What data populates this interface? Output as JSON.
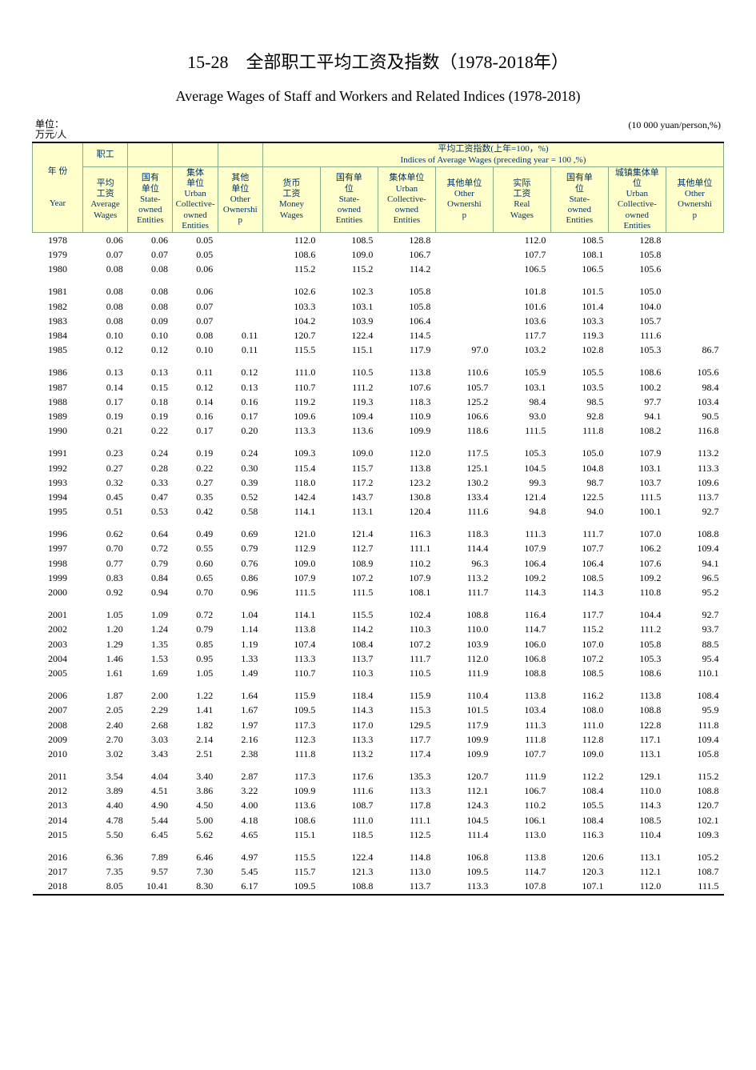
{
  "titles": {
    "cn": "15-28　全部职工平均工资及指数（1978-2018年）",
    "en": "Average Wages of Staff and Workers and Related Indices (1978-2018)"
  },
  "units": {
    "left": "单位：\n万元/人",
    "right": "(10 000 yuan/person,%)"
  },
  "header": {
    "year_cn": "年 份",
    "year_en": "Year",
    "staff_cn": "职工",
    "idx_group_cn": "平均工资指数(上年=100，%)",
    "idx_group_en": "Indices of Average Wages (preceding year = 100 ,%)",
    "avg_w_cn": "平均\n工资",
    "avg_w_en": "Average\nWages",
    "state_cn": "国有\n单位",
    "state_en": "State-\nowned\nEntities",
    "coll_cn": "集体\n单位",
    "coll_en": "Urban\nCollective-\nowned\nEntities",
    "other_cn": "其他\n单位",
    "other_en": "Other\nOwnershi\np",
    "money_cn": "货币\n工资",
    "money_en": "Money\nWages",
    "real_cn": "实际\n工资",
    "real_en": "Real\nWages",
    "state2_cn": "国有单\n位",
    "coll2_cn": "集体单位",
    "coll3_cn": "城镇集体单\n位",
    "other2_cn": "其他单位"
  },
  "groups": [
    [
      {
        "year": "1978",
        "c": [
          "0.06",
          "0.06",
          "0.05",
          "",
          "112.0",
          "108.5",
          "128.8",
          "",
          "112.0",
          "108.5",
          "128.8",
          ""
        ]
      },
      {
        "year": "1979",
        "c": [
          "0.07",
          "0.07",
          "0.05",
          "",
          "108.6",
          "109.0",
          "106.7",
          "",
          "107.7",
          "108.1",
          "105.8",
          ""
        ]
      },
      {
        "year": "1980",
        "c": [
          "0.08",
          "0.08",
          "0.06",
          "",
          "115.2",
          "115.2",
          "114.2",
          "",
          "106.5",
          "106.5",
          "105.6",
          ""
        ]
      }
    ],
    [
      {
        "year": "1981",
        "c": [
          "0.08",
          "0.08",
          "0.06",
          "",
          "102.6",
          "102.3",
          "105.8",
          "",
          "101.8",
          "101.5",
          "105.0",
          ""
        ]
      },
      {
        "year": "1982",
        "c": [
          "0.08",
          "0.08",
          "0.07",
          "",
          "103.3",
          "103.1",
          "105.8",
          "",
          "101.6",
          "101.4",
          "104.0",
          ""
        ]
      },
      {
        "year": "1983",
        "c": [
          "0.08",
          "0.09",
          "0.07",
          "",
          "104.2",
          "103.9",
          "106.4",
          "",
          "103.6",
          "103.3",
          "105.7",
          ""
        ]
      },
      {
        "year": "1984",
        "c": [
          "0.10",
          "0.10",
          "0.08",
          "0.11",
          "120.7",
          "122.4",
          "114.5",
          "",
          "117.7",
          "119.3",
          "111.6",
          ""
        ]
      },
      {
        "year": "1985",
        "c": [
          "0.12",
          "0.12",
          "0.10",
          "0.11",
          "115.5",
          "115.1",
          "117.9",
          "97.0",
          "103.2",
          "102.8",
          "105.3",
          "86.7"
        ]
      }
    ],
    [
      {
        "year": "1986",
        "c": [
          "0.13",
          "0.13",
          "0.11",
          "0.12",
          "111.0",
          "110.5",
          "113.8",
          "110.6",
          "105.9",
          "105.5",
          "108.6",
          "105.6"
        ]
      },
      {
        "year": "1987",
        "c": [
          "0.14",
          "0.15",
          "0.12",
          "0.13",
          "110.7",
          "111.2",
          "107.6",
          "105.7",
          "103.1",
          "103.5",
          "100.2",
          "98.4"
        ]
      },
      {
        "year": "1988",
        "c": [
          "0.17",
          "0.18",
          "0.14",
          "0.16",
          "119.2",
          "119.3",
          "118.3",
          "125.2",
          "98.4",
          "98.5",
          "97.7",
          "103.4"
        ]
      },
      {
        "year": "1989",
        "c": [
          "0.19",
          "0.19",
          "0.16",
          "0.17",
          "109.6",
          "109.4",
          "110.9",
          "106.6",
          "93.0",
          "92.8",
          "94.1",
          "90.5"
        ]
      },
      {
        "year": "1990",
        "c": [
          "0.21",
          "0.22",
          "0.17",
          "0.20",
          "113.3",
          "113.6",
          "109.9",
          "118.6",
          "111.5",
          "111.8",
          "108.2",
          "116.8"
        ]
      }
    ],
    [
      {
        "year": "1991",
        "c": [
          "0.23",
          "0.24",
          "0.19",
          "0.24",
          "109.3",
          "109.0",
          "112.0",
          "117.5",
          "105.3",
          "105.0",
          "107.9",
          "113.2"
        ]
      },
      {
        "year": "1992",
        "c": [
          "0.27",
          "0.28",
          "0.22",
          "0.30",
          "115.4",
          "115.7",
          "113.8",
          "125.1",
          "104.5",
          "104.8",
          "103.1",
          "113.3"
        ]
      },
      {
        "year": "1993",
        "c": [
          "0.32",
          "0.33",
          "0.27",
          "0.39",
          "118.0",
          "117.2",
          "123.2",
          "130.2",
          "99.3",
          "98.7",
          "103.7",
          "109.6"
        ]
      },
      {
        "year": "1994",
        "c": [
          "0.45",
          "0.47",
          "0.35",
          "0.52",
          "142.4",
          "143.7",
          "130.8",
          "133.4",
          "121.4",
          "122.5",
          "111.5",
          "113.7"
        ]
      },
      {
        "year": "1995",
        "c": [
          "0.51",
          "0.53",
          "0.42",
          "0.58",
          "114.1",
          "113.1",
          "120.4",
          "111.6",
          "94.8",
          "94.0",
          "100.1",
          "92.7"
        ]
      }
    ],
    [
      {
        "year": "1996",
        "c": [
          "0.62",
          "0.64",
          "0.49",
          "0.69",
          "121.0",
          "121.4",
          "116.3",
          "118.3",
          "111.3",
          "111.7",
          "107.0",
          "108.8"
        ]
      },
      {
        "year": "1997",
        "c": [
          "0.70",
          "0.72",
          "0.55",
          "0.79",
          "112.9",
          "112.7",
          "111.1",
          "114.4",
          "107.9",
          "107.7",
          "106.2",
          "109.4"
        ]
      },
      {
        "year": "1998",
        "c": [
          "0.77",
          "0.79",
          "0.60",
          "0.76",
          "109.0",
          "108.9",
          "110.2",
          "96.3",
          "106.4",
          "106.4",
          "107.6",
          "94.1"
        ]
      },
      {
        "year": "1999",
        "c": [
          "0.83",
          "0.84",
          "0.65",
          "0.86",
          "107.9",
          "107.2",
          "107.9",
          "113.2",
          "109.2",
          "108.5",
          "109.2",
          "96.5"
        ]
      },
      {
        "year": "2000",
        "c": [
          "0.92",
          "0.94",
          "0.70",
          "0.96",
          "111.5",
          "111.5",
          "108.1",
          "111.7",
          "114.3",
          "114.3",
          "110.8",
          "95.2"
        ]
      }
    ],
    [
      {
        "year": "2001",
        "c": [
          "1.05",
          "1.09",
          "0.72",
          "1.04",
          "114.1",
          "115.5",
          "102.4",
          "108.8",
          "116.4",
          "117.7",
          "104.4",
          "92.7"
        ]
      },
      {
        "year": "2002",
        "c": [
          "1.20",
          "1.24",
          "0.79",
          "1.14",
          "113.8",
          "114.2",
          "110.3",
          "110.0",
          "114.7",
          "115.2",
          "111.2",
          "93.7"
        ]
      },
      {
        "year": "2003",
        "c": [
          "1.29",
          "1.35",
          "0.85",
          "1.19",
          "107.4",
          "108.4",
          "107.2",
          "103.9",
          "106.0",
          "107.0",
          "105.8",
          "88.5"
        ]
      },
      {
        "year": "2004",
        "c": [
          "1.46",
          "1.53",
          "0.95",
          "1.33",
          "113.3",
          "113.7",
          "111.7",
          "112.0",
          "106.8",
          "107.2",
          "105.3",
          "95.4"
        ]
      },
      {
        "year": "2005",
        "c": [
          "1.61",
          "1.69",
          "1.05",
          "1.49",
          "110.7",
          "110.3",
          "110.5",
          "111.9",
          "108.8",
          "108.5",
          "108.6",
          "110.1"
        ]
      }
    ],
    [
      {
        "year": "2006",
        "c": [
          "1.87",
          "2.00",
          "1.22",
          "1.64",
          "115.9",
          "118.4",
          "115.9",
          "110.4",
          "113.8",
          "116.2",
          "113.8",
          "108.4"
        ]
      },
      {
        "year": "2007",
        "c": [
          "2.05",
          "2.29",
          "1.41",
          "1.67",
          "109.5",
          "114.3",
          "115.3",
          "101.5",
          "103.4",
          "108.0",
          "108.8",
          "95.9"
        ]
      },
      {
        "year": "2008",
        "c": [
          "2.40",
          "2.68",
          "1.82",
          "1.97",
          "117.3",
          "117.0",
          "129.5",
          "117.9",
          "111.3",
          "111.0",
          "122.8",
          "111.8"
        ]
      },
      {
        "year": "2009",
        "c": [
          "2.70",
          "3.03",
          "2.14",
          "2.16",
          "112.3",
          "113.3",
          "117.7",
          "109.9",
          "111.8",
          "112.8",
          "117.1",
          "109.4"
        ]
      },
      {
        "year": "2010",
        "c": [
          "3.02",
          "3.43",
          "2.51",
          "2.38",
          "111.8",
          "113.2",
          "117.4",
          "109.9",
          "107.7",
          "109.0",
          "113.1",
          "105.8"
        ]
      }
    ],
    [
      {
        "year": "2011",
        "c": [
          "3.54",
          "4.04",
          "3.40",
          "2.87",
          "117.3",
          "117.6",
          "135.3",
          "120.7",
          "111.9",
          "112.2",
          "129.1",
          "115.2"
        ]
      },
      {
        "year": "2012",
        "c": [
          "3.89",
          "4.51",
          "3.86",
          "3.22",
          "109.9",
          "111.6",
          "113.3",
          "112.1",
          "106.7",
          "108.4",
          "110.0",
          "108.8"
        ]
      },
      {
        "year": "2013",
        "c": [
          "4.40",
          "4.90",
          "4.50",
          "4.00",
          "113.6",
          "108.7",
          "117.8",
          "124.3",
          "110.2",
          "105.5",
          "114.3",
          "120.7"
        ]
      },
      {
        "year": "2014",
        "c": [
          "4.78",
          "5.44",
          "5.00",
          "4.18",
          "108.6",
          "111.0",
          "111.1",
          "104.5",
          "106.1",
          "108.4",
          "108.5",
          "102.1"
        ]
      },
      {
        "year": "2015",
        "c": [
          "5.50",
          "6.45",
          "5.62",
          "4.65",
          "115.1",
          "118.5",
          "112.5",
          "111.4",
          "113.0",
          "116.3",
          "110.4",
          "109.3"
        ]
      }
    ],
    [
      {
        "year": "2016",
        "c": [
          "6.36",
          "7.89",
          "6.46",
          "4.97",
          "115.5",
          "122.4",
          "114.8",
          "106.8",
          "113.8",
          "120.6",
          "113.1",
          "105.2"
        ]
      },
      {
        "year": "2017",
        "c": [
          "7.35",
          "9.57",
          "7.30",
          "5.45",
          "115.7",
          "121.3",
          "113.0",
          "109.5",
          "114.7",
          "120.3",
          "112.1",
          "108.7"
        ]
      },
      {
        "year": "2018",
        "c": [
          "8.05",
          "10.41",
          "8.30",
          "6.17",
          "109.5",
          "108.8",
          "113.7",
          "113.3",
          "107.8",
          "107.1",
          "112.0",
          "111.5"
        ]
      }
    ]
  ],
  "style": {
    "header_bg": "#ffffcc",
    "header_border": "#88aa88",
    "header_text_color": "#003366",
    "body_text_color": "#000000",
    "background": "#ffffff",
    "title_fontsize": 22,
    "subtitle_fontsize": 18,
    "cell_fontsize": 12,
    "header_fontsize": 11,
    "col_year_width": 56,
    "col_wage_width": 50,
    "col_idx_width": 64
  }
}
